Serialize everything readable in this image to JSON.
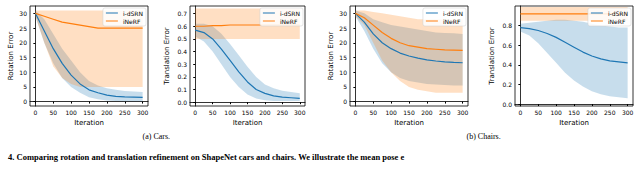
{
  "chart_data": [
    {
      "type": "line",
      "xlabel": "Iteration",
      "ylabel": "Rotation Error",
      "x": [
        0,
        25,
        50,
        75,
        100,
        125,
        150,
        175,
        200,
        225,
        250,
        275,
        300
      ],
      "xlim": [
        -15,
        315
      ],
      "xticks": [
        0,
        50,
        100,
        150,
        200,
        250,
        300
      ],
      "ylim": [
        -1.5,
        32.5
      ],
      "yticks": [
        0,
        5,
        10,
        15,
        20,
        25,
        30
      ],
      "grid": false,
      "legend": "upper right",
      "series": [
        {
          "name": "i-dSRN",
          "color": "#1f77b4",
          "values": [
            30,
            24,
            18,
            13,
            9,
            6,
            4,
            3,
            2.2,
            1.8,
            1.6,
            1.5,
            1.4
          ],
          "band_lower": [
            29,
            20,
            13,
            8,
            5,
            3,
            1.5,
            0.8,
            0.4,
            0.2,
            0.1,
            0.1,
            0.1
          ],
          "band_upper": [
            31,
            28,
            23,
            18,
            14,
            10,
            7,
            5.5,
            4.5,
            4,
            3.6,
            3.4,
            3.3
          ]
        },
        {
          "name": "iNeRF",
          "color": "#ff7f0e",
          "values": [
            30,
            29,
            28,
            27,
            26.5,
            26,
            25.5,
            25,
            25,
            25,
            25,
            25,
            25
          ],
          "band_lower": [
            29,
            20,
            12,
            8,
            6,
            5,
            5,
            5,
            5,
            5,
            5,
            5,
            5
          ],
          "band_upper": [
            31,
            31,
            31,
            31,
            31,
            31,
            31,
            31,
            31,
            31,
            31,
            31,
            31
          ]
        }
      ]
    },
    {
      "type": "line",
      "xlabel": "Iteration",
      "ylabel": "Translation Error",
      "x": [
        0,
        25,
        50,
        75,
        100,
        125,
        150,
        175,
        200,
        225,
        250,
        275,
        300
      ],
      "xlim": [
        -15,
        315
      ],
      "xticks": [
        0,
        50,
        100,
        150,
        200,
        250,
        300
      ],
      "ylim": [
        -0.03,
        0.76
      ],
      "yticks": [
        {
          "value": 0,
          "label": "0.0"
        },
        0.1,
        0.2,
        0.3,
        0.4,
        0.5,
        0.6,
        0.7
      ],
      "grid": false,
      "legend": "upper right",
      "series": [
        {
          "name": "i-dSRN",
          "color": "#1f77b4",
          "values": [
            0.57,
            0.55,
            0.5,
            0.42,
            0.33,
            0.24,
            0.16,
            0.1,
            0.07,
            0.05,
            0.04,
            0.035,
            0.03
          ],
          "band_lower": [
            0.52,
            0.48,
            0.4,
            0.3,
            0.2,
            0.12,
            0.06,
            0.03,
            0.015,
            0.01,
            0.01,
            0.01,
            0.01
          ],
          "band_upper": [
            0.62,
            0.62,
            0.6,
            0.54,
            0.46,
            0.37,
            0.28,
            0.2,
            0.14,
            0.11,
            0.09,
            0.08,
            0.07
          ]
        },
        {
          "name": "iNeRF",
          "color": "#ff7f0e",
          "values": [
            0.6,
            0.6,
            0.605,
            0.605,
            0.61,
            0.61,
            0.61,
            0.61,
            0.61,
            0.61,
            0.61,
            0.61,
            0.61
          ],
          "band_lower": [
            0.5,
            0.5,
            0.5,
            0.5,
            0.5,
            0.5,
            0.5,
            0.5,
            0.5,
            0.5,
            0.5,
            0.5,
            0.5
          ],
          "band_upper": [
            0.74,
            0.74,
            0.74,
            0.74,
            0.74,
            0.74,
            0.74,
            0.74,
            0.74,
            0.74,
            0.74,
            0.74,
            0.74
          ]
        }
      ]
    },
    {
      "type": "line",
      "xlabel": "Iteration",
      "ylabel": "Rotation Error",
      "x": [
        0,
        25,
        50,
        75,
        100,
        125,
        150,
        175,
        200,
        225,
        250,
        275,
        300
      ],
      "xlim": [
        -15,
        315
      ],
      "xticks": [
        0,
        50,
        100,
        150,
        200,
        250,
        300
      ],
      "ylim": [
        -1.5,
        32.5
      ],
      "yticks": [
        0,
        5,
        10,
        15,
        20,
        25,
        30
      ],
      "grid": false,
      "legend": "upper right",
      "series": [
        {
          "name": "i-dSRN",
          "color": "#1f77b4",
          "values": [
            30,
            27,
            23,
            20,
            18,
            16.5,
            15.5,
            14.8,
            14.2,
            13.8,
            13.5,
            13.3,
            13.2
          ],
          "band_lower": [
            29,
            24,
            18,
            13,
            10,
            8,
            7,
            6.5,
            6,
            5.8,
            5.6,
            5.5,
            5.5
          ],
          "band_upper": [
            31,
            30,
            28,
            27,
            26,
            25.5,
            25,
            24.5,
            24,
            23.5,
            23.3,
            23.2,
            23
          ]
        },
        {
          "name": "iNeRF",
          "color": "#ff7f0e",
          "values": [
            30,
            28.5,
            26,
            23.5,
            21.5,
            20,
            19,
            18.5,
            18,
            17.8,
            17.6,
            17.5,
            17.4
          ],
          "band_lower": [
            29,
            26,
            20,
            14,
            10,
            7,
            5,
            4,
            3.5,
            3,
            3,
            3,
            3
          ],
          "band_upper": [
            31,
            31,
            30.5,
            30,
            29.5,
            29,
            28.5,
            28,
            28,
            28,
            28,
            28,
            28
          ]
        }
      ]
    },
    {
      "type": "line",
      "xlabel": "Iteration",
      "ylabel": "Translation Error",
      "x": [
        0,
        25,
        50,
        75,
        100,
        125,
        150,
        175,
        200,
        225,
        250,
        275,
        300
      ],
      "xlim": [
        -15,
        315
      ],
      "xticks": [
        0,
        50,
        100,
        150,
        200,
        250,
        300
      ],
      "ylim": [
        -0.02,
        1.0
      ],
      "yticks": [
        {
          "value": 0,
          "label": "0.0"
        },
        0.2,
        0.4,
        0.6,
        0.8
      ],
      "grid": false,
      "legend": "upper right",
      "series": [
        {
          "name": "i-dSRN",
          "color": "#1f77b4",
          "values": [
            0.78,
            0.77,
            0.75,
            0.72,
            0.68,
            0.63,
            0.58,
            0.53,
            0.49,
            0.46,
            0.44,
            0.43,
            0.42
          ],
          "band_lower": [
            0.74,
            0.7,
            0.62,
            0.52,
            0.42,
            0.32,
            0.24,
            0.18,
            0.13,
            0.1,
            0.08,
            0.07,
            0.06
          ],
          "band_upper": [
            0.82,
            0.83,
            0.84,
            0.85,
            0.86,
            0.86,
            0.85,
            0.84,
            0.82,
            0.8,
            0.79,
            0.78,
            0.78
          ]
        },
        {
          "name": "iNeRF",
          "color": "#ff7f0e",
          "values": [
            0.92,
            0.92,
            0.92,
            0.92,
            0.92,
            0.92,
            0.92,
            0.92,
            0.92,
            0.92,
            0.92,
            0.92,
            0.92
          ],
          "band_lower": [
            0.85,
            0.85,
            0.85,
            0.85,
            0.85,
            0.85,
            0.85,
            0.85,
            0.85,
            0.85,
            0.85,
            0.85,
            0.85
          ],
          "band_upper": [
            0.99,
            0.99,
            0.99,
            0.99,
            0.99,
            0.99,
            0.99,
            0.99,
            0.99,
            0.99,
            0.99,
            0.99,
            0.99
          ]
        }
      ]
    }
  ],
  "subcaptions": [
    "(a) Cars.",
    "(b) Chairs."
  ],
  "caption": "4. Comparing rotation and translation refinement on ShapeNet cars and chairs. We illustrate the mean pose e"
}
